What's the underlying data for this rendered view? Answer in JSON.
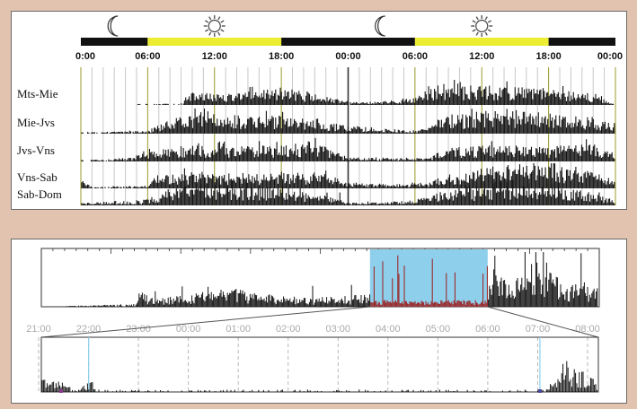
{
  "chart_data": [
    {
      "type": "bar",
      "title": "",
      "x_ticks": [
        "0:00",
        "06:00",
        "12:00",
        "18:00",
        "00:00",
        "06:00",
        "12:00",
        "18:00",
        "00:00"
      ],
      "day_night_bar": [
        {
          "from": "0:00",
          "to": "06:00",
          "phase": "night"
        },
        {
          "from": "06:00",
          "to": "18:00",
          "phase": "day"
        },
        {
          "from": "18:00",
          "to": "06:00",
          "phase": "night"
        },
        {
          "from": "06:00",
          "to": "18:00",
          "phase": "day"
        },
        {
          "from": "18:00",
          "to": "00:00",
          "phase": "night"
        }
      ],
      "icons": [
        {
          "name": "moon-icon",
          "at_hour": 3
        },
        {
          "name": "sun-icon",
          "at_hour": 12
        },
        {
          "name": "moon-icon",
          "at_hour": 27
        },
        {
          "name": "sun-icon",
          "at_hour": 36
        }
      ],
      "rows": [
        {
          "label": "Mts-Mie",
          "activity": [
            [
              0,
              0
            ],
            [
              9,
              0.05
            ],
            [
              10,
              0.45
            ],
            [
              13,
              0.4
            ],
            [
              16,
              0.55
            ],
            [
              19,
              0.6
            ],
            [
              24,
              0.1
            ],
            [
              28,
              0.15
            ],
            [
              30,
              0.25
            ],
            [
              32,
              0.8
            ],
            [
              37,
              0.7
            ],
            [
              42,
              0.6
            ],
            [
              46,
              0.4
            ],
            [
              48,
              0
            ]
          ]
        },
        {
          "label": "Mie-Jvs",
          "activity": [
            [
              0,
              0.05
            ],
            [
              6,
              0.1
            ],
            [
              7,
              0.35
            ],
            [
              9,
              0.7
            ],
            [
              12,
              0.9
            ],
            [
              15,
              0.6
            ],
            [
              18,
              0.7
            ],
            [
              21,
              0.5
            ],
            [
              24,
              0.3
            ],
            [
              30,
              0.1
            ],
            [
              31,
              0.2
            ],
            [
              33,
              0.7
            ],
            [
              38,
              0.9
            ],
            [
              43,
              0.7
            ],
            [
              46,
              0.6
            ],
            [
              48,
              0.3
            ]
          ]
        },
        {
          "label": "Jvs-Vns",
          "activity": [
            [
              0,
              0.05
            ],
            [
              4,
              0.1
            ],
            [
              7,
              0.45
            ],
            [
              10,
              0.6
            ],
            [
              14,
              0.55
            ],
            [
              18,
              0.6
            ],
            [
              21,
              0.7
            ],
            [
              24,
              0.15
            ],
            [
              30,
              0.1
            ],
            [
              31,
              0.15
            ],
            [
              33,
              0.5
            ],
            [
              37,
              0.6
            ],
            [
              42,
              0.55
            ],
            [
              46,
              0.7
            ],
            [
              48,
              0.2
            ]
          ]
        },
        {
          "label": "Vns-Sab",
          "activity": [
            [
              0,
              0.45
            ],
            [
              1,
              0.05
            ],
            [
              6,
              0.1
            ],
            [
              7,
              0.5
            ],
            [
              10,
              0.6
            ],
            [
              14,
              0.5
            ],
            [
              18,
              0.55
            ],
            [
              22,
              0.6
            ],
            [
              24,
              0.2
            ],
            [
              29,
              0.15
            ],
            [
              31,
              0.2
            ],
            [
              33,
              0.5
            ],
            [
              38,
              0.9
            ],
            [
              42,
              0.85
            ],
            [
              46,
              0.6
            ],
            [
              48,
              0.3
            ]
          ]
        },
        {
          "label": "Sab-Dom",
          "activity": [
            [
              0,
              0.1
            ],
            [
              5,
              0.15
            ],
            [
              7,
              0.3
            ],
            [
              9,
              0.7
            ],
            [
              12,
              0.9
            ],
            [
              16,
              0.7
            ],
            [
              20,
              0.55
            ],
            [
              23,
              0.45
            ],
            [
              24,
              0.1
            ],
            [
              29,
              0.15
            ],
            [
              31,
              0.3
            ],
            [
              34,
              0.6
            ],
            [
              38,
              0.95
            ],
            [
              42,
              0.7
            ],
            [
              45,
              0.55
            ],
            [
              48,
              0.3
            ]
          ]
        }
      ],
      "colors": {
        "night": "#111111",
        "day": "#ecec33",
        "marker": "#9a9a2a",
        "bars": "#111111"
      }
    },
    {
      "type": "bar",
      "title": "",
      "overview": {
        "selection": {
          "from": 0.589,
          "to": 0.8
        },
        "activity": [
          [
            0,
            0
          ],
          [
            17,
            0.05
          ],
          [
            18,
            0.25
          ],
          [
            20,
            0.15
          ],
          [
            26,
            0.2
          ],
          [
            28,
            0.3
          ],
          [
            30,
            0.35
          ],
          [
            36,
            0.3
          ],
          [
            37,
            0.25
          ],
          [
            48,
            0.15
          ],
          [
            62,
            0.25
          ],
          [
            66,
            0.3
          ],
          [
            70,
            0.6
          ],
          [
            74,
            0.65
          ],
          [
            78,
            0.5
          ],
          [
            82,
            0.7
          ],
          [
            84,
            0.4
          ],
          [
            90,
            0.95
          ],
          [
            94,
            0.3
          ],
          [
            96,
            0.5
          ],
          [
            100,
            0.35
          ]
        ],
        "highlight_color": "#8ecfec",
        "zoom_bar_color": "#9c1c1c"
      },
      "x_ticks": [
        "21:00",
        "22:00",
        "23:00",
        "00:00",
        "01:00",
        "02:00",
        "03:00",
        "04:00",
        "05:00",
        "06:00",
        "07:00",
        "08:00"
      ],
      "zoom_activity": [
        [
          0,
          0.3
        ],
        [
          4,
          0.2
        ],
        [
          6,
          0.05
        ],
        [
          7,
          0.1
        ],
        [
          9,
          0.25
        ],
        [
          10,
          0.05
        ],
        [
          20,
          0.04
        ],
        [
          40,
          0.05
        ],
        [
          60,
          0.05
        ],
        [
          80,
          0.04
        ],
        [
          90,
          0.05
        ],
        [
          93,
          0.3
        ],
        [
          94,
          0.7
        ],
        [
          96,
          0.5
        ],
        [
          98,
          0.35
        ],
        [
          100,
          0.2
        ]
      ],
      "markers": [
        {
          "at": 0.085,
          "color": "#8ecfec"
        },
        {
          "at": 0.895,
          "color": "#8ecfec"
        }
      ],
      "colors": {
        "ticks": "#a9a9a9",
        "grid": "#b0b0b0",
        "bars": "#111111"
      }
    }
  ]
}
